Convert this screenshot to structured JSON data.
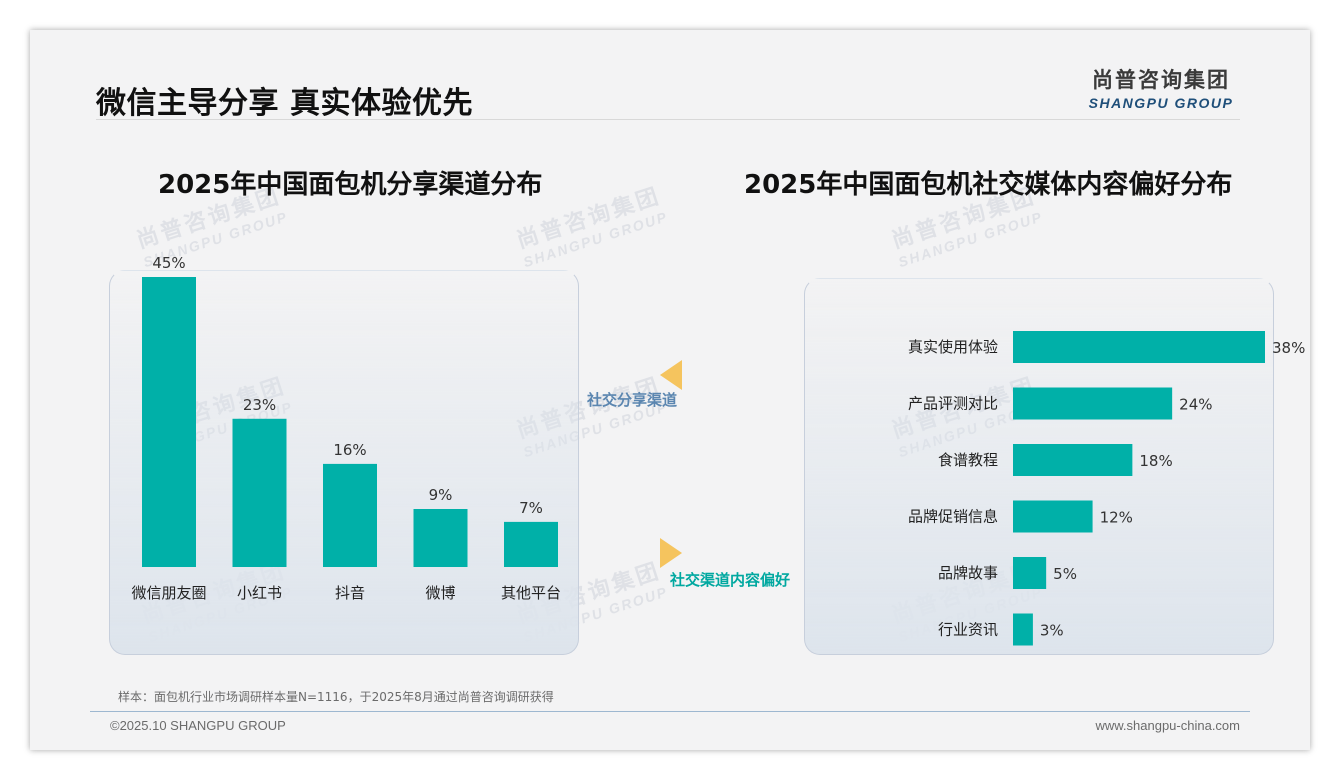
{
  "header": {
    "title": "微信主导分享 真实体验优先",
    "logo_cn": "尚普咨询集团",
    "logo_en": "SHANGPU GROUP"
  },
  "watermark": {
    "cn": "尚普咨询集团",
    "en": "SHANGPU GROUP"
  },
  "arrows": {
    "share_label": "社交分享渠道",
    "content_label": "社交渠道内容偏好",
    "share_color": "#f5c45e",
    "content_color": "#f5c45e"
  },
  "colors": {
    "bar": "#00b0a8",
    "label": "#333333"
  },
  "chart_data": [
    {
      "type": "bar",
      "title": "2025年中国面包机分享渠道分布",
      "categories": [
        "微信朋友圈",
        "小红书",
        "抖音",
        "微博",
        "其他平台"
      ],
      "values": [
        45,
        23,
        16,
        9,
        7
      ],
      "value_labels": [
        "45%",
        "23%",
        "16%",
        "9%",
        "7%"
      ],
      "unit": "%",
      "ylim": [
        0,
        45
      ],
      "grid": false,
      "legend": "none"
    },
    {
      "type": "bar",
      "orientation": "horizontal",
      "title": "2025年中国面包机社交媒体内容偏好分布",
      "categories": [
        "真实使用体验",
        "产品评测对比",
        "食谱教程",
        "品牌促销信息",
        "品牌故事",
        "行业资讯"
      ],
      "values": [
        38,
        24,
        18,
        12,
        5,
        3
      ],
      "value_labels": [
        "38%",
        "24%",
        "18%",
        "12%",
        "5%",
        "3%"
      ],
      "unit": "%",
      "xlim": [
        0,
        38
      ],
      "grid": false,
      "legend": "none"
    }
  ],
  "footer": {
    "note": "样本：面包机行业市场调研样本量N=1116，于2025年8月通过尚普咨询调研获得",
    "copyright": "©2025.10 SHANGPU GROUP",
    "website": "www.shangpu-china.com"
  }
}
